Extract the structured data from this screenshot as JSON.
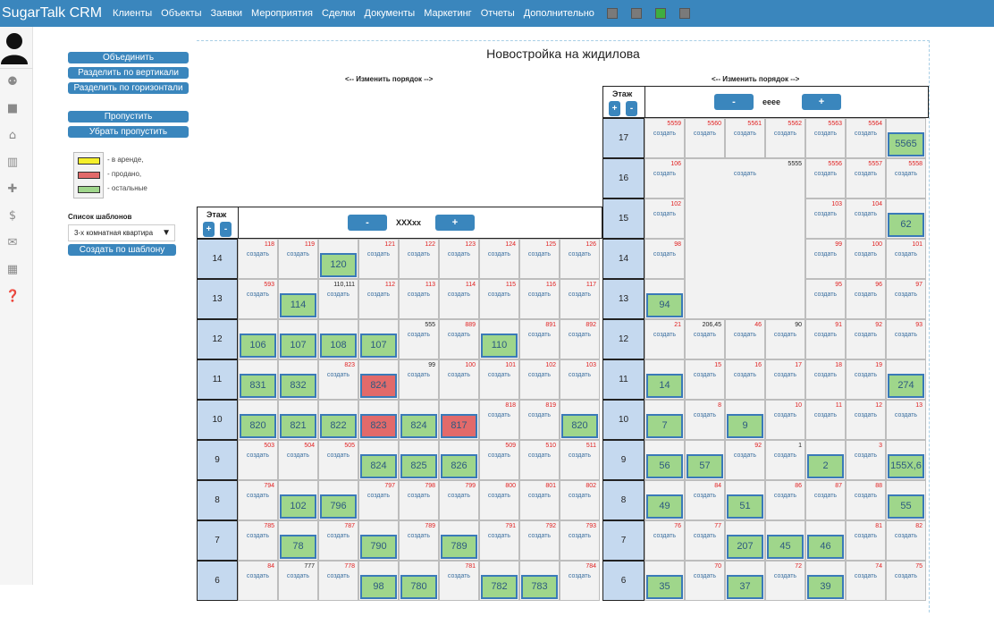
{
  "app": {
    "brand": "SugarTalk CRM"
  },
  "nav": [
    "Клиенты",
    "Объекты",
    "Заявки",
    "Мероприятия",
    "Сделки",
    "Документы",
    "Маркетинг",
    "Отчеты",
    "Дополнительно"
  ],
  "nav_squares": [
    "#7a7a7a",
    "#7a7a7a",
    "#3fae3f",
    "#7a7a7a"
  ],
  "sidebar_icons": [
    "add-user-icon",
    "briefcase-icon",
    "home-icon",
    "building-icon",
    "puzzle-icon",
    "dollar-icon",
    "envelope-icon",
    "calendar-icon",
    "help-icon"
  ],
  "actions": {
    "merge": "Объединить",
    "split_v": "Разделить по вертикали",
    "split_h": "Разделить по горизонтали",
    "skip": "Пропустить",
    "unskip": "Убрать пропустить"
  },
  "legend": [
    {
      "color": "#f5ef2a",
      "label": "- в аренде,"
    },
    {
      "color": "#e26a6a",
      "label": "- продано,"
    },
    {
      "color": "#9fd68b",
      "label": "- остальные"
    }
  ],
  "templates": {
    "label": "Список шаблонов",
    "selected": "3-х комнатная квартира",
    "create": "Создать по шаблону"
  },
  "building": {
    "title": "Новостройка на жидилова",
    "order_label": "<-- Изменить порядок -->",
    "etazh": "Этаж",
    "plus": "+",
    "minus": "-",
    "create": "создать"
  },
  "section_left": {
    "name": "XXXxx",
    "floors": [
      {
        "n": "14",
        "cells": [
          {
            "num": "118"
          },
          {
            "num": "119"
          },
          {
            "apt": "120"
          },
          {
            "num": "121"
          },
          {
            "num": "122"
          },
          {
            "num": "123"
          },
          {
            "num": "124"
          },
          {
            "num": "125"
          },
          {
            "num": "126"
          }
        ]
      },
      {
        "n": "13",
        "cells": [
          {
            "num": "593"
          },
          {
            "apt": "114"
          },
          {
            "num": "110,111",
            "dark": true
          },
          {
            "num": "112"
          },
          {
            "num": "113"
          },
          {
            "num": "114"
          },
          {
            "num": "115"
          },
          {
            "num": "116"
          },
          {
            "num": "117"
          }
        ]
      },
      {
        "n": "12",
        "cells": [
          {
            "apt": "106"
          },
          {
            "apt": "107"
          },
          {
            "apt": "108"
          },
          {
            "apt": "107"
          },
          {
            "num": "555",
            "dark": true
          },
          {
            "num": "889"
          },
          {
            "apt": "110"
          },
          {
            "num": "891"
          },
          {
            "num": "892"
          }
        ]
      },
      {
        "n": "11",
        "cells": [
          {
            "apt": "831"
          },
          {
            "apt": "832"
          },
          {
            "num": "823"
          },
          {
            "apt": "824",
            "red": true
          },
          {
            "num": "99",
            "dark": true
          },
          {
            "num": "100"
          },
          {
            "num": "101"
          },
          {
            "num": "102"
          },
          {
            "num": "103"
          }
        ]
      },
      {
        "n": "10",
        "cells": [
          {
            "apt": "820"
          },
          {
            "apt": "821"
          },
          {
            "apt": "822"
          },
          {
            "apt": "823",
            "red": true
          },
          {
            "apt": "824"
          },
          {
            "apt": "817",
            "red": true
          },
          {
            "num": "818"
          },
          {
            "num": "819"
          },
          {
            "apt": "820"
          }
        ]
      },
      {
        "n": "9",
        "cells": [
          {
            "num": "503"
          },
          {
            "num": "504"
          },
          {
            "num": "505"
          },
          {
            "apt": "824"
          },
          {
            "apt": "825"
          },
          {
            "apt": "826"
          },
          {
            "num": "509"
          },
          {
            "num": "510"
          },
          {
            "num": "511"
          }
        ]
      },
      {
        "n": "8",
        "cells": [
          {
            "num": "794"
          },
          {
            "apt": "102"
          },
          {
            "apt": "796"
          },
          {
            "num": "797"
          },
          {
            "num": "798"
          },
          {
            "num": "799"
          },
          {
            "num": "800"
          },
          {
            "num": "801"
          },
          {
            "num": "802"
          }
        ]
      },
      {
        "n": "7",
        "cells": [
          {
            "num": "785"
          },
          {
            "apt": "78"
          },
          {
            "num": "787"
          },
          {
            "apt": "790"
          },
          {
            "num": "789"
          },
          {
            "apt": "789"
          },
          {
            "num": "791"
          },
          {
            "num": "792"
          },
          {
            "num": "793"
          }
        ]
      },
      {
        "n": "6",
        "cells": [
          {
            "num": "84"
          },
          {
            "num": "777",
            "dark": true
          },
          {
            "num": "778"
          },
          {
            "apt": "98"
          },
          {
            "apt": "780"
          },
          {
            "num": "781"
          },
          {
            "apt": "782"
          },
          {
            "apt": "783"
          },
          {
            "num": "784"
          }
        ]
      }
    ]
  },
  "section_right": {
    "name": "eeee",
    "floors": [
      {
        "n": "17",
        "cells": [
          {
            "num": "5559"
          },
          {
            "num": "5560"
          },
          {
            "num": "5561"
          },
          {
            "num": "5562"
          },
          {
            "num": "5563"
          },
          {
            "num": "5564"
          },
          {
            "apt": "5565"
          }
        ]
      },
      {
        "n": "16",
        "cells": [
          {
            "num": "106"
          },
          {
            "skip": true
          },
          {
            "skip": true
          },
          {
            "skip": true
          },
          {
            "num": "5556"
          },
          {
            "num": "5557"
          },
          {
            "num": "5558"
          }
        ]
      },
      {
        "n": "15",
        "cells": [
          {
            "num": "102"
          },
          {
            "skip": true
          },
          {
            "skip": true
          },
          {
            "skip": true
          },
          {
            "num": "103"
          },
          {
            "num": "104"
          },
          {
            "apt": "62"
          }
        ]
      },
      {
        "n": "14",
        "cells": [
          {
            "num": "98"
          },
          {
            "skip": true
          },
          {
            "skip": true
          },
          {
            "skip": true
          },
          {
            "num": "99"
          },
          {
            "num": "100"
          },
          {
            "num": "101"
          }
        ]
      },
      {
        "n": "13",
        "cells": [
          {
            "apt": "94"
          },
          {
            "skip": true
          },
          {
            "skip": true
          },
          {
            "skip": true
          },
          {
            "num": "95"
          },
          {
            "num": "96"
          },
          {
            "num": "97"
          }
        ]
      },
      {
        "n": "12",
        "cells": [
          {
            "num": "21"
          },
          {
            "num": "206,45",
            "dark": true
          },
          {
            "num": "46"
          },
          {
            "num": "90",
            "dark": true
          },
          {
            "num": "91"
          },
          {
            "num": "92"
          },
          {
            "num": "93"
          }
        ]
      },
      {
        "n": "11",
        "cells": [
          {
            "apt": "14"
          },
          {
            "num": "15"
          },
          {
            "num": "16"
          },
          {
            "num": "17"
          },
          {
            "num": "18"
          },
          {
            "num": "19"
          },
          {
            "apt": "274"
          }
        ]
      },
      {
        "n": "10",
        "cells": [
          {
            "apt": "7"
          },
          {
            "num": "8"
          },
          {
            "apt": "9"
          },
          {
            "num": "10"
          },
          {
            "num": "11"
          },
          {
            "num": "12"
          },
          {
            "num": "13"
          }
        ]
      },
      {
        "n": "9",
        "cells": [
          {
            "apt": "56"
          },
          {
            "apt": "57"
          },
          {
            "num": "92"
          },
          {
            "num": "1",
            "dark": true
          },
          {
            "apt": "2"
          },
          {
            "num": "3"
          },
          {
            "apt": "155X,6"
          }
        ]
      },
      {
        "n": "8",
        "cells": [
          {
            "apt": "49"
          },
          {
            "num": "84"
          },
          {
            "apt": "51"
          },
          {
            "num": "86"
          },
          {
            "num": "87"
          },
          {
            "num": "88"
          },
          {
            "apt": "55"
          }
        ]
      },
      {
        "n": "7",
        "cells": [
          {
            "num": "76"
          },
          {
            "num": "77"
          },
          {
            "apt": "207"
          },
          {
            "apt": "45"
          },
          {
            "apt": "46"
          },
          {
            "num": "81"
          },
          {
            "num": "82"
          }
        ]
      },
      {
        "n": "6",
        "cells": [
          {
            "apt": "35"
          },
          {
            "num": "70"
          },
          {
            "apt": "37"
          },
          {
            "num": "72"
          },
          {
            "apt": "39"
          },
          {
            "num": "74"
          },
          {
            "num": "75"
          }
        ]
      }
    ],
    "merged": {
      "num": "5555",
      "dark": true
    }
  }
}
